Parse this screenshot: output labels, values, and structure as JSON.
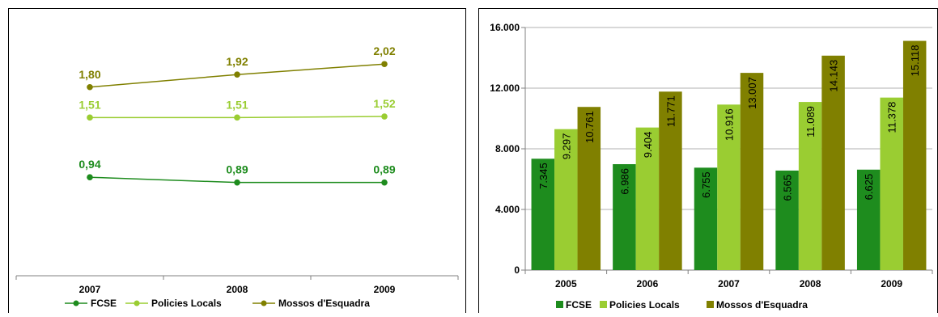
{
  "chart_data": [
    {
      "type": "line",
      "categories": [
        "2007",
        "2008",
        "2009"
      ],
      "series": [
        {
          "name": "FCSE",
          "values": [
            0.94,
            0.89,
            0.89
          ],
          "labels": [
            "0,94",
            "0,89",
            "0,89"
          ],
          "color": "#1e8c1e"
        },
        {
          "name": "Policies Locals",
          "values": [
            1.51,
            1.51,
            1.52
          ],
          "labels": [
            "1,51",
            "1,51",
            "1,52"
          ],
          "color": "#9acd32"
        },
        {
          "name": "Mossos d'Esquadra",
          "values": [
            1.8,
            1.92,
            2.02
          ],
          "labels": [
            "1,80",
            "1,92",
            "2,02"
          ],
          "color": "#808000"
        }
      ],
      "ylim": [
        0,
        2.4
      ],
      "grid": false,
      "legend": "bottom"
    },
    {
      "type": "bar",
      "categories": [
        "2005",
        "2006",
        "2007",
        "2008",
        "2009"
      ],
      "series": [
        {
          "name": "FCSE",
          "values": [
            7345,
            6986,
            6755,
            6565,
            6625
          ],
          "labels": [
            "7.345",
            "6.986",
            "6.755",
            "6.565",
            "6.625"
          ],
          "color": "#1e8c1e"
        },
        {
          "name": "Policies Locals",
          "values": [
            9297,
            9404,
            10916,
            11089,
            11378
          ],
          "labels": [
            "9.297",
            "9.404",
            "10.916",
            "11.089",
            "11.378"
          ],
          "color": "#9acd32"
        },
        {
          "name": "Mossos d'Esquadra",
          "values": [
            10761,
            11771,
            13007,
            14143,
            15118
          ],
          "labels": [
            "10.761",
            "11.771",
            "13.007",
            "14.143",
            "15.118"
          ],
          "color": "#808000"
        }
      ],
      "yticks": [
        0,
        4000,
        8000,
        12000,
        16000
      ],
      "ytick_labels": [
        "0",
        "4.000",
        "8.000",
        "12.000",
        "16.000"
      ],
      "ylim": [
        0,
        16000
      ],
      "grid": true,
      "legend": "bottom"
    }
  ]
}
